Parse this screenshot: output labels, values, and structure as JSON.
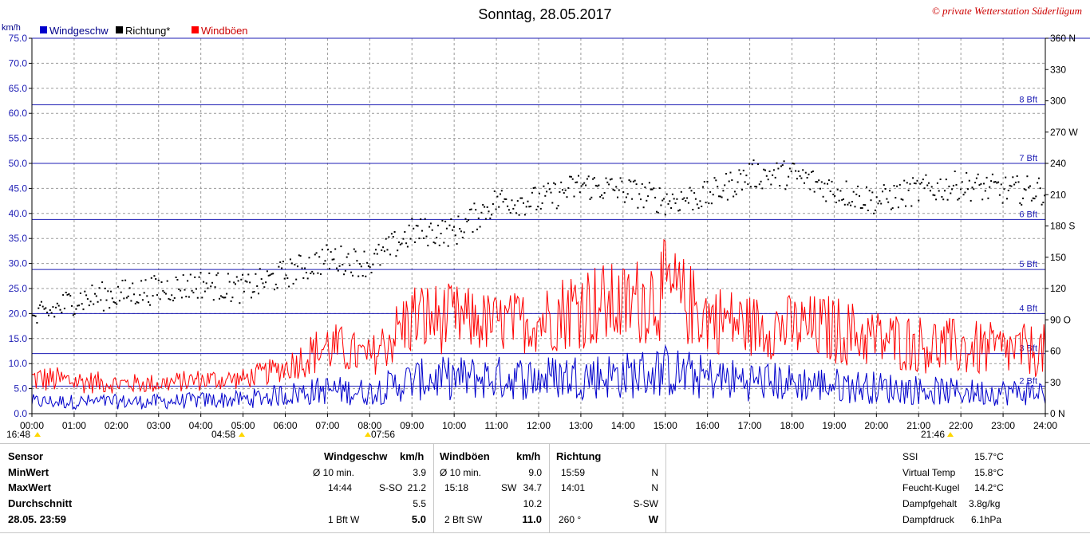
{
  "chart_data": {
    "type": "line",
    "title": "Sonntag, 28.05.2017",
    "copyright": "© private Wetterstation Süderlügum",
    "ylabel_left": "km/h",
    "legend": [
      {
        "label": "Windgeschw",
        "color": "#0000cc"
      },
      {
        "label": "Richtung*",
        "color": "#000000"
      },
      {
        "label": "Windböen",
        "color": "#ff0000"
      }
    ],
    "ylim": [
      0,
      75
    ],
    "yticks_left": [
      "0.0",
      "5.0",
      "10.0",
      "15.0",
      "20.0",
      "25.0",
      "30.0",
      "35.0",
      "40.0",
      "45.0",
      "50.0",
      "55.0",
      "60.0",
      "65.0",
      "70.0",
      "75.0"
    ],
    "yticks_right": [
      {
        "v": 0,
        "label": "0  N"
      },
      {
        "v": 30,
        "label": "30"
      },
      {
        "v": 60,
        "label": "60"
      },
      {
        "v": 90,
        "label": "90  O"
      },
      {
        "v": 120,
        "label": "120"
      },
      {
        "v": 150,
        "label": "150"
      },
      {
        "v": 180,
        "label": "180  S"
      },
      {
        "v": 210,
        "label": "210"
      },
      {
        "v": 240,
        "label": "240"
      },
      {
        "v": 270,
        "label": "270  W"
      },
      {
        "v": 300,
        "label": "300"
      },
      {
        "v": 330,
        "label": "330"
      },
      {
        "v": 360,
        "label": "360  N"
      }
    ],
    "xticks": [
      "00:00",
      "01:00",
      "02:00",
      "03:00",
      "04:00",
      "05:00",
      "06:00",
      "07:00",
      "08:00",
      "09:00",
      "10:00",
      "11:00",
      "12:00",
      "13:00",
      "14:00",
      "15:00",
      "16:00",
      "17:00",
      "18:00",
      "19:00",
      "20:00",
      "21:00",
      "22:00",
      "23:00",
      "24:00"
    ],
    "beaufort_lines": [
      {
        "kmh": 5.5,
        "label": "2 Bft"
      },
      {
        "kmh": 12.0,
        "label": "3 Bft"
      },
      {
        "kmh": 20.0,
        "label": "4 Bft"
      },
      {
        "kmh": 28.8,
        "label": "5 Bft"
      },
      {
        "kmh": 38.8,
        "label": "6 Bft"
      },
      {
        "kmh": 50.0,
        "label": "7 Bft"
      },
      {
        "kmh": 61.7,
        "label": "8 Bft"
      }
    ],
    "sun_markers": [
      "16:48",
      "04:58",
      "07:56",
      "21:46"
    ],
    "series_gust_hourly_max": [
      10,
      9,
      8,
      8,
      9,
      9,
      12,
      19,
      15,
      27,
      26,
      24,
      25,
      31,
      30,
      35,
      27,
      24,
      24,
      24,
      21,
      20,
      19,
      18
    ],
    "series_speed_hourly_avg": [
      2.5,
      2.5,
      2.5,
      2.5,
      2.8,
      3.0,
      4.0,
      5.0,
      4.5,
      7.0,
      7.5,
      7.5,
      7.5,
      8.0,
      8.0,
      9.0,
      7.5,
      7.0,
      6.5,
      6.0,
      5.5,
      5.0,
      4.5,
      4.5
    ],
    "series_direction_hourly": [
      90,
      110,
      115,
      120,
      125,
      120,
      135,
      150,
      145,
      175,
      175,
      205,
      205,
      220,
      215,
      205,
      210,
      230,
      230,
      215,
      205,
      215,
      220,
      215
    ]
  },
  "table": {
    "headers": {
      "sensor": "Sensor",
      "wind": "Windgeschw",
      "wind_unit": "km/h",
      "gust": "Windböen",
      "gust_unit": "km/h",
      "dir": "Richtung"
    },
    "rows": {
      "minwert": "MinWert",
      "maxwert": "MaxWert",
      "avg": "Durchschnitt",
      "date": "28.05. 23:59"
    },
    "wind": {
      "min_label": "Ø 10 min.",
      "min_val": "3.9",
      "max_time": "14:44",
      "max_dir": "S-SO",
      "max_val": "21.2",
      "avg_val": "5.5",
      "cur_bft": "1 Bft W",
      "cur_val": "5.0"
    },
    "gust": {
      "min_label": "Ø 10 min.",
      "min_val": "9.0",
      "max_time": "15:18",
      "max_dir": "SW",
      "max_val": "34.7",
      "avg_val": "10.2",
      "cur_bft": "2 Bft SW",
      "cur_val": "11.0"
    },
    "dir": {
      "min_time": "15:59",
      "min_val": "N",
      "max_time": "14:01",
      "max_val": "N",
      "avg_val": "S-SW",
      "cur_deg": "260 °",
      "cur_val": "W"
    },
    "extra": [
      {
        "label": "SSI",
        "value": "15.7°C"
      },
      {
        "label": "Virtual Temp",
        "value": "15.8°C"
      },
      {
        "label": "Feucht-Kugel",
        "value": "14.2°C"
      },
      {
        "label": "Dampfgehalt",
        "value": "3.8g/kg"
      },
      {
        "label": "Dampfdruck",
        "value": "6.1hPa"
      }
    ]
  }
}
